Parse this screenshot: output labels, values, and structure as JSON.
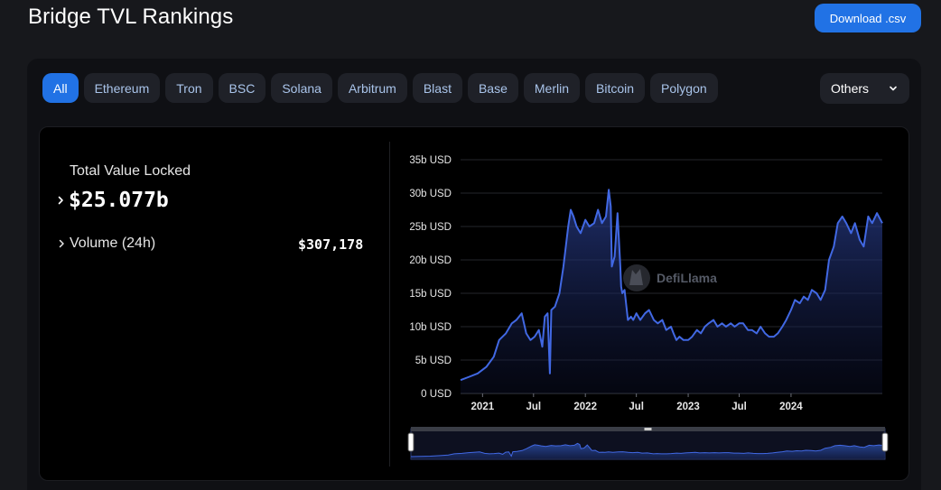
{
  "header": {
    "title": "Bridge TVL Rankings",
    "download_label": "Download .csv"
  },
  "filters": {
    "chains": [
      "All",
      "Ethereum",
      "Tron",
      "BSC",
      "Solana",
      "Arbitrum",
      "Blast",
      "Base",
      "Merlin",
      "Bitcoin",
      "Polygon"
    ],
    "active": "All",
    "others_label": "Others"
  },
  "summary": {
    "tvl_label": "Total Value Locked",
    "tvl_value": "$25.077b",
    "volume_label": "Volume (24h)",
    "volume_value": "$307,178"
  },
  "watermark": "DefiLlama",
  "colors": {
    "accent": "#2172e5",
    "line": "#4168e3"
  },
  "chart_data": {
    "type": "area",
    "title": "",
    "xlabel": "",
    "ylabel": "",
    "ylim": [
      0,
      35
    ],
    "y_unit": "b USD",
    "y_ticks": [
      0,
      5,
      10,
      15,
      20,
      25,
      30,
      35
    ],
    "y_tick_labels": [
      "0 USD",
      "5b USD",
      "10b USD",
      "15b USD",
      "20b USD",
      "25b USD",
      "30b USD",
      "35b USD"
    ],
    "x_range": [
      "2020-10-15",
      "2024-11-20"
    ],
    "x_ticks": [
      "2021-01-01",
      "2021-07-01",
      "2022-01-01",
      "2022-07-01",
      "2023-01-01",
      "2023-07-01",
      "2024-01-01"
    ],
    "x_tick_labels": [
      "2021",
      "Jul",
      "2022",
      "Jul",
      "2023",
      "Jul",
      "2024"
    ],
    "grid": true,
    "legend": "none",
    "series": [
      {
        "x": [
          "2020-10-15",
          "2020-11-15",
          "2020-12-15",
          "2021-01-15",
          "2021-02-10",
          "2021-03-01",
          "2021-03-25",
          "2021-04-15",
          "2021-05-01",
          "2021-05-20",
          "2021-06-05",
          "2021-06-20",
          "2021-07-05",
          "2021-07-20",
          "2021-08-01",
          "2021-08-10",
          "2021-08-20",
          "2021-08-28",
          "2021-09-02",
          "2021-09-15",
          "2021-10-01",
          "2021-10-15",
          "2021-11-01",
          "2021-11-10",
          "2021-11-20",
          "2021-12-01",
          "2021-12-15",
          "2022-01-01",
          "2022-01-15",
          "2022-02-01",
          "2022-02-15",
          "2022-03-01",
          "2022-03-15",
          "2022-03-25",
          "2022-04-01",
          "2022-04-05",
          "2022-04-15",
          "2022-04-25",
          "2022-05-05",
          "2022-05-08",
          "2022-05-12",
          "2022-05-20",
          "2022-06-01",
          "2022-06-12",
          "2022-06-20",
          "2022-07-01",
          "2022-07-15",
          "2022-08-01",
          "2022-08-15",
          "2022-09-01",
          "2022-09-15",
          "2022-10-01",
          "2022-10-15",
          "2022-11-01",
          "2022-11-10",
          "2022-11-20",
          "2022-12-01",
          "2022-12-15",
          "2023-01-01",
          "2023-01-15",
          "2023-02-01",
          "2023-02-15",
          "2023-03-01",
          "2023-03-15",
          "2023-04-01",
          "2023-04-15",
          "2023-05-01",
          "2023-05-15",
          "2023-06-01",
          "2023-06-15",
          "2023-07-01",
          "2023-07-15",
          "2023-08-01",
          "2023-08-15",
          "2023-09-01",
          "2023-09-15",
          "2023-10-01",
          "2023-10-15",
          "2023-11-01",
          "2023-11-15",
          "2023-12-01",
          "2023-12-15",
          "2024-01-01",
          "2024-01-15",
          "2024-02-01",
          "2024-02-15",
          "2024-03-01",
          "2024-03-15",
          "2024-04-01",
          "2024-04-15",
          "2024-05-01",
          "2024-05-15",
          "2024-06-01",
          "2024-06-15",
          "2024-07-01",
          "2024-07-15",
          "2024-08-01",
          "2024-08-15",
          "2024-09-01",
          "2024-09-15",
          "2024-10-01",
          "2024-10-15",
          "2024-11-01",
          "2024-11-20"
        ],
        "values": [
          2.0,
          2.5,
          3.0,
          4.0,
          5.5,
          8.0,
          9.0,
          10.5,
          11.0,
          12.0,
          9.0,
          8.0,
          8.5,
          9.5,
          7.0,
          11.5,
          12.0,
          3.0,
          12.5,
          13.0,
          15.0,
          19.0,
          25.0,
          27.5,
          26.5,
          25.0,
          24.0,
          26.0,
          25.0,
          25.5,
          27.5,
          25.5,
          26.5,
          30.5,
          28.0,
          19.0,
          20.5,
          27.0,
          19.0,
          16.0,
          15.0,
          15.5,
          11.0,
          11.5,
          11.0,
          12.0,
          11.0,
          12.0,
          12.5,
          11.0,
          10.5,
          11.0,
          9.5,
          10.0,
          9.0,
          8.0,
          8.5,
          8.0,
          8.0,
          8.5,
          9.5,
          9.0,
          10.0,
          10.5,
          11.0,
          10.0,
          10.5,
          10.0,
          10.5,
          10.0,
          10.5,
          10.5,
          9.5,
          9.5,
          9.0,
          10.0,
          9.0,
          8.5,
          8.5,
          9.0,
          10.0,
          11.0,
          12.5,
          14.0,
          13.5,
          14.5,
          14.0,
          15.5,
          15.0,
          14.0,
          15.5,
          20.0,
          22.0,
          25.5,
          26.5,
          25.5,
          24.0,
          25.5,
          23.0,
          22.0,
          26.5,
          25.5,
          27.0,
          25.5
        ]
      }
    ]
  }
}
